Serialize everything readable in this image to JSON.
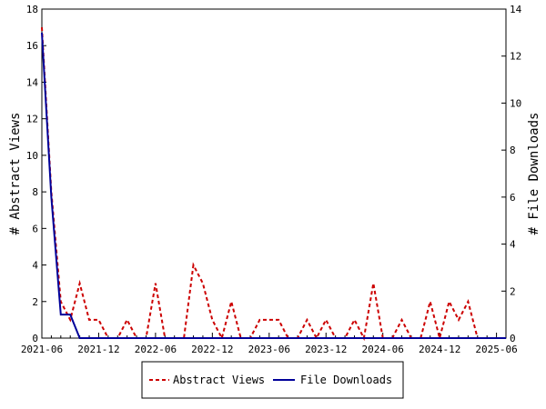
{
  "chart_data": {
    "type": "line",
    "x": [
      "2021-06",
      "2021-07",
      "2021-08",
      "2021-09",
      "2021-10",
      "2021-11",
      "2021-12",
      "2022-01",
      "2022-02",
      "2022-03",
      "2022-04",
      "2022-05",
      "2022-06",
      "2022-07",
      "2022-08",
      "2022-09",
      "2022-10",
      "2022-11",
      "2022-12",
      "2023-01",
      "2023-02",
      "2023-03",
      "2023-04",
      "2023-05",
      "2023-06",
      "2023-07",
      "2023-08",
      "2023-09",
      "2023-10",
      "2023-11",
      "2023-12",
      "2024-01",
      "2024-02",
      "2024-03",
      "2024-04",
      "2024-05",
      "2024-06",
      "2024-07",
      "2024-08",
      "2024-09",
      "2024-10",
      "2024-11",
      "2024-12",
      "2025-01",
      "2025-02",
      "2025-03",
      "2025-04",
      "2025-05",
      "2025-06",
      "2025-07"
    ],
    "x_tick_labels": [
      "2021-06",
      "2021-12",
      "2022-06",
      "2022-12",
      "2023-06",
      "2023-12",
      "2024-06",
      "2024-12",
      "2025-06"
    ],
    "series": [
      {
        "name": "Abstract Views",
        "axis": "left",
        "color": "#cc0000",
        "style": "dashed",
        "values": [
          17,
          8,
          2,
          1,
          3,
          1,
          1,
          0,
          0,
          1,
          0,
          0,
          3,
          0,
          0,
          0,
          4,
          3,
          1,
          0,
          2,
          0,
          0,
          1,
          1,
          1,
          0,
          0,
          1,
          0,
          1,
          0,
          0,
          1,
          0,
          3,
          0,
          0,
          1,
          0,
          0,
          2,
          0,
          2,
          1,
          2,
          0,
          0,
          0,
          0
        ]
      },
      {
        "name": "File Downloads",
        "axis": "right",
        "color": "#000099",
        "style": "solid",
        "values": [
          13,
          6,
          1,
          1,
          0,
          0,
          0,
          0,
          0,
          0,
          0,
          0,
          0,
          0,
          0,
          0,
          0,
          0,
          0,
          0,
          0,
          0,
          0,
          0,
          0,
          0,
          0,
          0,
          0,
          0,
          0,
          0,
          0,
          0,
          0,
          0,
          0,
          0,
          0,
          0,
          0,
          0,
          0,
          0,
          0,
          0,
          0,
          0,
          0,
          0
        ]
      }
    ],
    "ylabel": "# Abstract Views",
    "y2label": "# File Downloads",
    "ylim": [
      0,
      18
    ],
    "y2lim": [
      0,
      14
    ],
    "yticks": [
      0,
      2,
      4,
      6,
      8,
      10,
      12,
      14,
      16,
      18
    ],
    "y2ticks": [
      0,
      2,
      4,
      6,
      8,
      10,
      12,
      14
    ],
    "grid": false,
    "legend": "bottom-center"
  }
}
